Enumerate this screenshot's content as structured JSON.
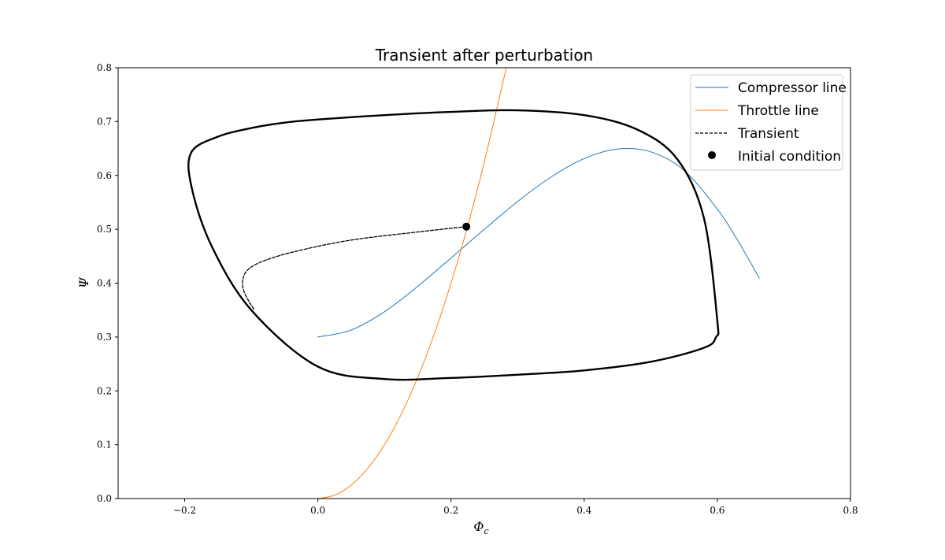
{
  "chart_data": {
    "type": "line",
    "title": "Transient after perturbation",
    "xlabel": "Φ",
    "xlabel_sub": "c",
    "ylabel": "Ψ",
    "xlim": [
      -0.3,
      0.8
    ],
    "ylim": [
      0.0,
      0.8
    ],
    "x_ticks": [
      -0.2,
      0.0,
      0.2,
      0.4,
      0.6,
      0.8
    ],
    "x_tick_labels": [
      "−0.2",
      "0.0",
      "0.2",
      "0.4",
      "0.6",
      "0.8"
    ],
    "y_ticks": [
      0.0,
      0.1,
      0.2,
      0.3,
      0.4,
      0.5,
      0.6,
      0.7,
      0.8
    ],
    "y_tick_labels": [
      "0.0",
      "0.1",
      "0.2",
      "0.3",
      "0.4",
      "0.5",
      "0.6",
      "0.7",
      "0.8"
    ],
    "grid": false,
    "legend_position": "top-right",
    "series": [
      {
        "name": "Compressor line",
        "style": "solid",
        "color": "#1f77b4",
        "x": [
          0.0,
          0.05,
          0.1,
          0.15,
          0.2,
          0.25,
          0.3,
          0.35,
          0.4,
          0.45,
          0.5,
          0.55,
          0.6,
          0.63,
          0.663
        ],
        "y": [
          0.3,
          0.3129,
          0.3469,
          0.3941,
          0.4467,
          0.5,
          0.5516,
          0.5969,
          0.6313,
          0.649,
          0.6438,
          0.6094,
          0.5375,
          0.4806,
          0.4094
        ]
      },
      {
        "name": "Throttle line",
        "style": "solid",
        "color": "#ff7f0e",
        "x": [
          0.0,
          0.025,
          0.05,
          0.075,
          0.1,
          0.125,
          0.15,
          0.175,
          0.2,
          0.225,
          0.25,
          0.283
        ],
        "y": [
          0.0,
          0.0062,
          0.025,
          0.0562,
          0.1,
          0.1562,
          0.225,
          0.3062,
          0.4,
          0.5063,
          0.625,
          0.8
        ]
      },
      {
        "name": "Transient",
        "style": "dashed",
        "color": "#000000",
        "x": [
          0.223,
          0.15,
          0.05,
          -0.03,
          -0.08,
          -0.105,
          -0.113,
          -0.111,
          -0.103,
          -0.095
        ],
        "y": [
          0.505,
          0.495,
          0.48,
          0.46,
          0.442,
          0.425,
          0.405,
          0.385,
          0.365,
          0.35
        ]
      },
      {
        "name": "",
        "style": "solid-thick",
        "color": "#000000",
        "closed": true,
        "x": [
          0.0,
          0.1,
          0.2,
          0.3,
          0.4,
          0.48,
          0.54,
          0.58,
          0.6,
          0.598,
          0.58,
          0.5,
          0.4,
          0.3,
          0.2,
          0.1,
          0.0,
          -0.1,
          -0.16,
          -0.19,
          -0.19,
          -0.15,
          -0.1,
          -0.05
        ],
        "y": [
          0.704,
          0.712,
          0.718,
          0.721,
          0.712,
          0.685,
          0.63,
          0.52,
          0.33,
          0.3,
          0.28,
          0.254,
          0.238,
          0.23,
          0.224,
          0.222,
          0.245,
          0.35,
          0.47,
          0.58,
          0.643,
          0.672,
          0.688,
          0.698
        ]
      }
    ],
    "markers": [
      {
        "name": "Initial condition",
        "x": 0.223,
        "y": 0.505,
        "color": "#000000"
      }
    ]
  }
}
